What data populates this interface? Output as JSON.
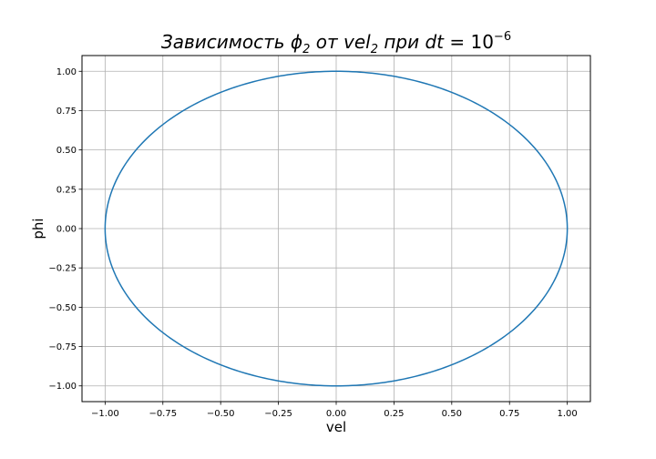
{
  "chart_data": {
    "type": "line",
    "title": {
      "prefix": "Зависимость ",
      "phi": "ϕ",
      "phi_sub": "2",
      "mid": " от ",
      "vel": "vel",
      "vel_sub": "2",
      "post": " при ",
      "dt": "dt",
      "eq": " = 10",
      "exp": "−6"
    },
    "xlabel": "vel",
    "ylabel": "phi",
    "xlim": [
      -1.1,
      1.1
    ],
    "ylim": [
      -1.1,
      1.1
    ],
    "grid": true,
    "x_ticks": [
      -1.0,
      -0.75,
      -0.5,
      -0.25,
      0.0,
      0.25,
      0.5,
      0.75,
      1.0
    ],
    "x_tick_labels": [
      "−1.00",
      "−0.75",
      "−0.50",
      "−0.25",
      "0.00",
      "0.25",
      "0.50",
      "0.75",
      "1.00"
    ],
    "y_ticks": [
      1.0,
      0.75,
      0.5,
      0.25,
      0.0,
      -0.25,
      -0.5,
      -0.75,
      -1.0
    ],
    "y_tick_labels": [
      "1.00",
      "0.75",
      "0.50",
      "0.25",
      "0.00",
      "−0.25",
      "−0.50",
      "−0.75",
      "−1.00"
    ],
    "series": [
      {
        "color": "#1f77b4",
        "curve": "ellipse",
        "center": [
          0.0,
          0.0
        ],
        "x_radius": 1.0,
        "y_radius": 1.0,
        "sample_points": [
          [
            1.0,
            0.0
          ],
          [
            0.707,
            0.707
          ],
          [
            0.0,
            1.0
          ],
          [
            -0.707,
            0.707
          ],
          [
            -1.0,
            0.0
          ],
          [
            -0.707,
            -0.707
          ],
          [
            0.0,
            -1.0
          ],
          [
            0.707,
            -0.707
          ],
          [
            1.0,
            0.0
          ]
        ]
      }
    ]
  }
}
